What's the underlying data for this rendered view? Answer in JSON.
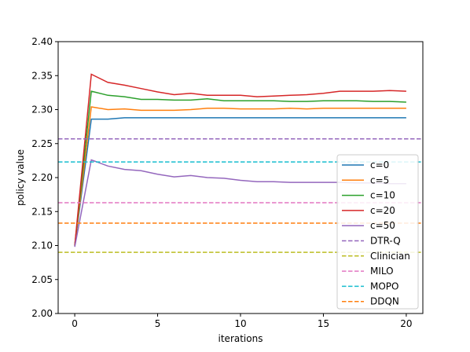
{
  "chart_data": {
    "type": "line",
    "xlabel": "iterations",
    "ylabel": "policy value",
    "xlim": [
      -1,
      21
    ],
    "ylim": [
      2.0,
      2.4
    ],
    "xticks": [
      0,
      5,
      10,
      15,
      20
    ],
    "xtick_labels": [
      "0",
      "5",
      "10",
      "15",
      "20"
    ],
    "yticks": [
      2.0,
      2.05,
      2.1,
      2.15,
      2.2,
      2.25,
      2.3,
      2.35,
      2.4
    ],
    "ytick_labels": [
      "2.00",
      "2.05",
      "2.10",
      "2.15",
      "2.20",
      "2.25",
      "2.30",
      "2.35",
      "2.40"
    ],
    "grid": false,
    "legend_position": "center-right",
    "x": [
      0,
      1,
      2,
      3,
      4,
      5,
      6,
      7,
      8,
      9,
      10,
      11,
      12,
      13,
      14,
      15,
      16,
      17,
      18,
      19,
      20
    ],
    "series": [
      {
        "name": "c=0",
        "color": "#1f77b4",
        "style": "solid",
        "values": [
          2.1,
          2.286,
          2.286,
          2.288,
          2.288,
          2.288,
          2.288,
          2.288,
          2.288,
          2.288,
          2.288,
          2.288,
          2.288,
          2.288,
          2.288,
          2.288,
          2.288,
          2.288,
          2.288,
          2.288,
          2.288
        ]
      },
      {
        "name": "c=5",
        "color": "#ff7f0e",
        "style": "solid",
        "values": [
          2.1,
          2.304,
          2.3,
          2.301,
          2.299,
          2.299,
          2.299,
          2.3,
          2.302,
          2.302,
          2.301,
          2.301,
          2.301,
          2.302,
          2.301,
          2.302,
          2.302,
          2.302,
          2.302,
          2.302,
          2.302
        ]
      },
      {
        "name": "c=10",
        "color": "#2ca02c",
        "style": "solid",
        "values": [
          2.1,
          2.327,
          2.321,
          2.319,
          2.315,
          2.315,
          2.314,
          2.314,
          2.316,
          2.313,
          2.313,
          2.313,
          2.313,
          2.312,
          2.312,
          2.313,
          2.313,
          2.313,
          2.312,
          2.312,
          2.311
        ]
      },
      {
        "name": "c=20",
        "color": "#d62728",
        "style": "solid",
        "values": [
          2.1,
          2.352,
          2.34,
          2.336,
          2.331,
          2.326,
          2.322,
          2.324,
          2.321,
          2.321,
          2.321,
          2.319,
          2.32,
          2.321,
          2.322,
          2.324,
          2.327,
          2.327,
          2.327,
          2.328,
          2.327
        ]
      },
      {
        "name": "c=50",
        "color": "#9467bd",
        "style": "solid",
        "values": [
          2.098,
          2.226,
          2.217,
          2.212,
          2.21,
          2.205,
          2.201,
          2.203,
          2.2,
          2.199,
          2.196,
          2.194,
          2.194,
          2.193,
          2.193,
          2.193,
          2.193,
          2.192,
          2.192,
          2.191,
          2.191
        ]
      },
      {
        "name": "DTR-Q",
        "color": "#9467bd",
        "style": "dashed",
        "constant": 2.257
      },
      {
        "name": "Clinician",
        "color": "#bcbd22",
        "style": "dashed",
        "constant": 2.09
      },
      {
        "name": "MILO",
        "color": "#e377c2",
        "style": "dashed",
        "constant": 2.163
      },
      {
        "name": "MOPO",
        "color": "#17becf",
        "style": "dashed",
        "constant": 2.223
      },
      {
        "name": "DDQN",
        "color": "#ff7f0e",
        "style": "dashed",
        "constant": 2.133
      }
    ]
  }
}
